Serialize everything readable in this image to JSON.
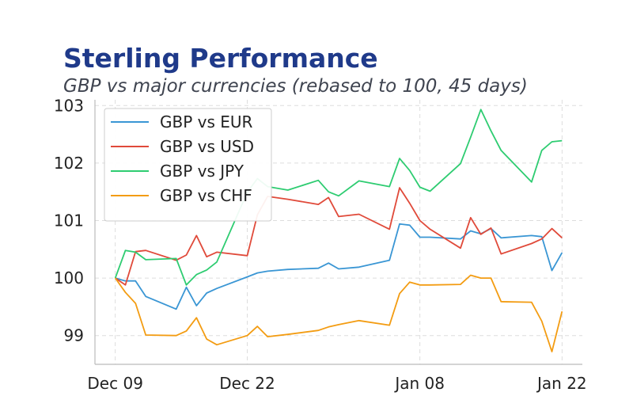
{
  "chart_data": {
    "type": "line",
    "title": "Sterling Performance",
    "subtitle": "GBP vs major currencies (rebased to 100, 45 days)",
    "xlabel": "",
    "ylabel": "",
    "x_ticks": [
      "Dec 09",
      "Dec 22",
      "Jan 08",
      "Jan 22"
    ],
    "y_ticks": [
      99,
      100,
      101,
      102,
      103
    ],
    "xlim": [
      "Dec 07",
      "Jan 24"
    ],
    "ylim": [
      98.5,
      103.1
    ],
    "grid": true,
    "legend_position": "top-left",
    "x": [
      "Dec 09",
      "Dec 10",
      "Dec 11",
      "Dec 12",
      "Dec 15",
      "Dec 16",
      "Dec 17",
      "Dec 18",
      "Dec 19",
      "Dec 22",
      "Dec 23",
      "Dec 24",
      "Dec 26",
      "Dec 29",
      "Dec 30",
      "Dec 31",
      "Jan 02",
      "Jan 05",
      "Jan 06",
      "Jan 07",
      "Jan 08",
      "Jan 09",
      "Jan 12",
      "Jan 13",
      "Jan 14",
      "Jan 15",
      "Jan 16",
      "Jan 19",
      "Jan 20",
      "Jan 21",
      "Jan 22"
    ],
    "series": [
      {
        "name": "GBP vs EUR",
        "color": "#3a96d4",
        "values": [
          100.0,
          99.95,
          99.95,
          99.68,
          99.46,
          99.84,
          99.52,
          99.74,
          99.82,
          100.02,
          100.09,
          100.12,
          100.15,
          100.17,
          100.26,
          100.16,
          100.19,
          100.31,
          100.94,
          100.92,
          100.71,
          100.71,
          100.68,
          100.82,
          100.77,
          100.86,
          100.7,
          100.74,
          100.72,
          100.13,
          100.44
        ]
      },
      {
        "name": "GBP vs USD",
        "color": "#e04a3a",
        "values": [
          100.0,
          99.88,
          100.46,
          100.48,
          100.31,
          100.4,
          100.74,
          100.37,
          100.45,
          100.39,
          101.1,
          101.42,
          101.37,
          101.28,
          101.4,
          101.07,
          101.11,
          100.85,
          101.57,
          101.3,
          101.0,
          100.85,
          100.52,
          101.05,
          100.76,
          100.87,
          100.42,
          100.6,
          100.68,
          100.86,
          100.7
        ]
      },
      {
        "name": "GBP vs JPY",
        "color": "#2ecc71",
        "values": [
          100.0,
          100.48,
          100.45,
          100.32,
          100.34,
          99.88,
          100.06,
          100.14,
          100.28,
          101.49,
          101.73,
          101.59,
          101.53,
          101.7,
          101.5,
          101.43,
          101.69,
          101.59,
          102.08,
          101.87,
          101.58,
          101.51,
          101.99,
          102.45,
          102.93,
          102.56,
          102.22,
          101.67,
          102.22,
          102.37,
          102.39
        ]
      },
      {
        "name": "GBP vs CHF",
        "color": "#f39c12",
        "values": [
          100.0,
          99.75,
          99.56,
          99.01,
          99.0,
          99.08,
          99.31,
          98.94,
          98.84,
          99.0,
          99.16,
          98.98,
          99.02,
          99.09,
          99.15,
          99.19,
          99.26,
          99.18,
          99.73,
          99.93,
          99.88,
          99.88,
          99.89,
          100.05,
          100.0,
          100.0,
          99.59,
          99.58,
          99.25,
          98.72,
          99.42
        ]
      }
    ]
  }
}
